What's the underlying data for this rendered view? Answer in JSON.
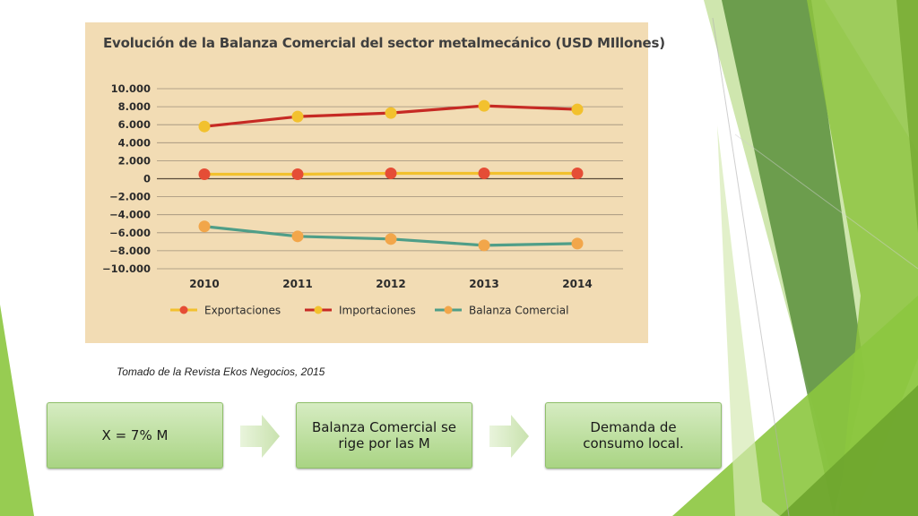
{
  "chart_data": {
    "type": "line",
    "title": "Evolución de la Balanza Comercial del sector metalmecánico (USD MIllones)",
    "categories": [
      "2010",
      "2011",
      "2012",
      "2013",
      "2014"
    ],
    "series": [
      {
        "name": "Exportaciones",
        "line_color": "#f2c12e",
        "marker_color": "#e54d36",
        "values": [
          500,
          500,
          600,
          600,
          600
        ]
      },
      {
        "name": "Importaciones",
        "line_color": "#c62a24",
        "marker_color": "#f2c12e",
        "values": [
          5800,
          6900,
          7300,
          8100,
          7700
        ]
      },
      {
        "name": "Balanza Comercial",
        "line_color": "#4f9e88",
        "marker_color": "#f2a64a",
        "values": [
          -5300,
          -6400,
          -6700,
          -7400,
          -7200
        ]
      }
    ],
    "ylim": [
      -10000,
      10000
    ],
    "yticks": [
      "10.000",
      "8.000",
      "6.000",
      "4.000",
      "2.000",
      "0",
      "−2.000",
      "−4.000",
      "−6.000",
      "−8.000",
      "−10.000"
    ],
    "ytick_values": [
      10000,
      8000,
      6000,
      4000,
      2000,
      0,
      -2000,
      -4000,
      -6000,
      -8000,
      -10000
    ],
    "grid": true,
    "legend_position": "bottom"
  },
  "source_note": "Tomado de la Revista Ekos Negocios, 2015",
  "flow": [
    {
      "label": "X = 7% M"
    },
    {
      "label": "Balanza Comercial se rige por las M"
    },
    {
      "label": "Demanda de consumo local."
    }
  ]
}
